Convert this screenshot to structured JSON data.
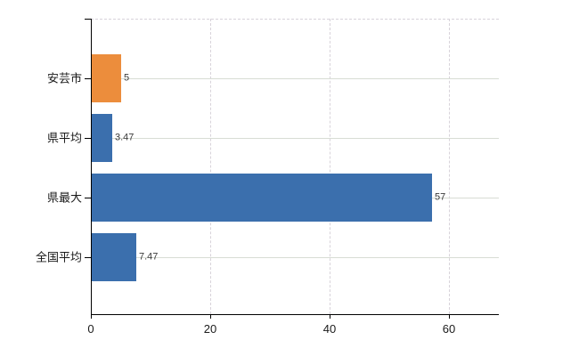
{
  "chart_data": {
    "type": "bar",
    "orientation": "horizontal",
    "title": "",
    "legend": "none",
    "grid": {
      "vertical_dashed": true,
      "horizontal_solid": true,
      "top_border_dashed": true
    },
    "categories": [
      "安芸市",
      "県平均",
      "県最大",
      "全国平均"
    ],
    "values": [
      5,
      3.47,
      57,
      7.47
    ],
    "value_labels": [
      "5",
      "3.47",
      "57",
      "7.47"
    ],
    "bar_colors": [
      "#ec8d3c",
      "#3b6fad",
      "#3b6fad",
      "#3b6fad"
    ],
    "x_tick_values": [
      0,
      20,
      40,
      60
    ],
    "x_tick_labels": [
      "0",
      "20",
      "40",
      "60"
    ],
    "xlim": [
      0,
      68.4
    ],
    "colors": {
      "bar_blue": "#3b6fad",
      "bar_orange": "#ec8d3c",
      "axis": "#000000",
      "grid_horizontal": "#d8dcd4",
      "grid_vertical": "#d8d3da",
      "category_label": "#1a1a1a",
      "tick_label": "#1a1a1a",
      "value_label": "#3a3a3a",
      "background": "#ffffff"
    }
  }
}
